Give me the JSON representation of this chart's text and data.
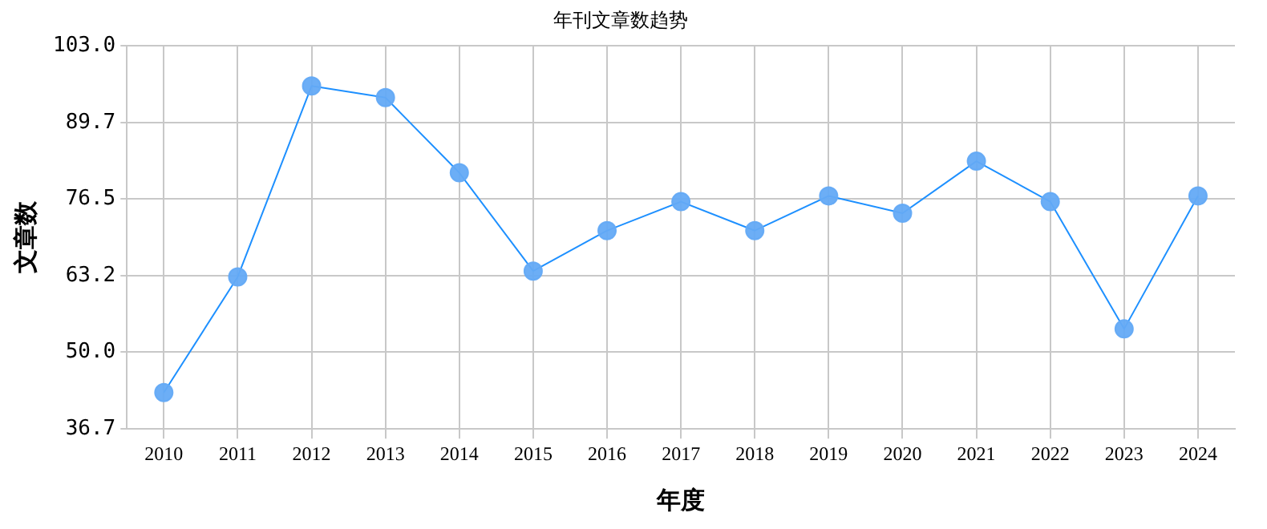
{
  "chart_data": {
    "type": "line",
    "title": "年刊文章数趋势",
    "xlabel": "年度",
    "ylabel": "文章数",
    "categories": [
      "2010",
      "2011",
      "2012",
      "2013",
      "2014",
      "2015",
      "2016",
      "2017",
      "2018",
      "2019",
      "2020",
      "2021",
      "2022",
      "2023",
      "2024"
    ],
    "series": [
      {
        "color": "#1e90ff",
        "values": [
          43,
          63,
          96,
          94,
          81,
          64,
          71,
          76,
          71,
          77,
          74,
          83,
          76,
          54,
          77
        ]
      }
    ],
    "ylim": [
      36.7,
      103.0
    ],
    "yticks": [
      {
        "value": 36.7,
        "label": "36.7"
      },
      {
        "value": 50,
        "label": "50.0"
      },
      {
        "value": 63.2,
        "label": "63.2"
      },
      {
        "value": 76.5,
        "label": "76.5"
      },
      {
        "value": 89.7,
        "label": "89.7"
      },
      {
        "value": 103,
        "label": "103.0"
      }
    ],
    "grid": true,
    "legend": false,
    "marker": "circle",
    "line_style": "solid"
  }
}
